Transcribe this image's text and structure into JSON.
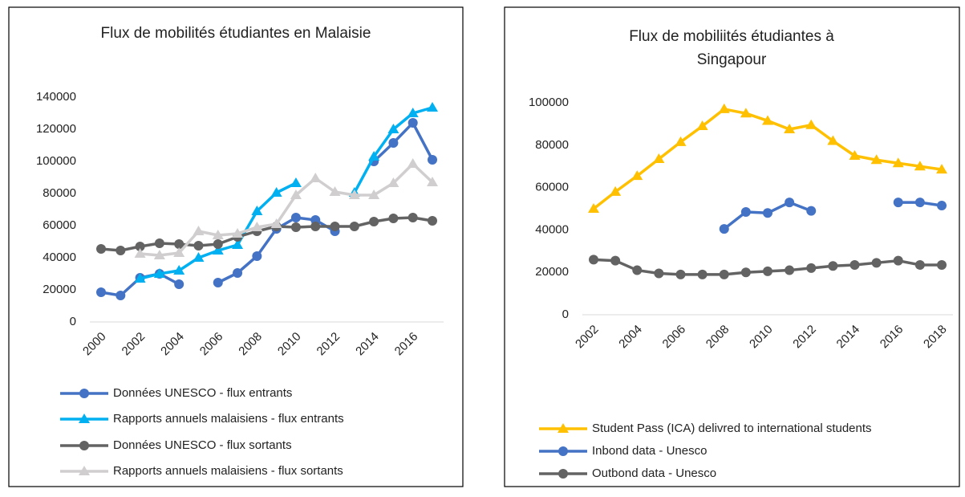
{
  "chart_data": [
    {
      "type": "line",
      "title": [
        "Flux de mobilités étudiantes en Malaisie"
      ],
      "x": [
        2000,
        2001,
        2002,
        2003,
        2004,
        2005,
        2006,
        2007,
        2008,
        2009,
        2010,
        2011,
        2012,
        2013,
        2014,
        2015,
        2016,
        2017
      ],
      "xlim": [
        2000,
        2017
      ],
      "xticks": [
        2000,
        2002,
        2004,
        2006,
        2008,
        2010,
        2012,
        2014,
        2016
      ],
      "ylim": [
        0,
        140000
      ],
      "yticks": [
        0,
        20000,
        40000,
        60000,
        80000,
        100000,
        120000,
        140000
      ],
      "series": [
        {
          "name": "Données UNESCO - flux entrants",
          "color": "#4472c4",
          "marker": "circle",
          "values": [
            18500,
            16500,
            27500,
            30000,
            23500,
            null,
            24500,
            30500,
            41000,
            58000,
            65000,
            63500,
            56500,
            null,
            100000,
            111500,
            124000,
            101000
          ]
        },
        {
          "name": "Rapports annuels malaisiens - flux entrants",
          "color": "#00b0f0",
          "marker": "triangle",
          "values": [
            null,
            null,
            27000,
            30000,
            32000,
            40000,
            44500,
            48000,
            69000,
            80500,
            86500,
            null,
            null,
            80500,
            103000,
            120000,
            130000,
            133500
          ]
        },
        {
          "name": "Données UNESCO - flux sortants",
          "color": "#636363",
          "marker": "circle",
          "values": [
            45500,
            44500,
            47000,
            49000,
            48500,
            47500,
            48500,
            53000,
            56500,
            59500,
            59000,
            59500,
            59500,
            59500,
            62500,
            64500,
            65000,
            63000
          ]
        },
        {
          "name": "Rapports annuels malaisiens - flux sortants",
          "color": "#d0cece",
          "marker": "triangle",
          "values": [
            null,
            null,
            42500,
            41500,
            43000,
            56500,
            54000,
            55000,
            59000,
            61000,
            79000,
            89500,
            81000,
            79000,
            79000,
            86500,
            98500,
            87000
          ]
        }
      ]
    },
    {
      "type": "line",
      "title": [
        "Flux de mobiliités étudiantes à",
        "Singapour"
      ],
      "x": [
        2002,
        2003,
        2004,
        2005,
        2006,
        2007,
        2008,
        2009,
        2010,
        2011,
        2012,
        2013,
        2014,
        2015,
        2016,
        2017,
        2018
      ],
      "xlim": [
        2002,
        2018
      ],
      "xticks": [
        2002,
        2004,
        2006,
        2008,
        2010,
        2012,
        2014,
        2016,
        2018
      ],
      "ylim": [
        0,
        100000
      ],
      "yticks": [
        0,
        20000,
        40000,
        60000,
        80000,
        100000
      ],
      "series": [
        {
          "name": "Student Pass (ICA) delivred to international students",
          "color": "#ffc000",
          "marker": "triangle",
          "values": [
            50000,
            58000,
            65500,
            73500,
            81500,
            89000,
            97000,
            95000,
            91500,
            87500,
            89500,
            82000,
            75000,
            73000,
            71500,
            70000,
            68500
          ]
        },
        {
          "name": "Inbond data - Unesco",
          "color": "#4472c4",
          "marker": "circle",
          "values": [
            null,
            null,
            null,
            null,
            null,
            null,
            40500,
            48500,
            48000,
            53000,
            49000,
            null,
            null,
            null,
            53000,
            53000,
            51500
          ]
        },
        {
          "name": "Outbond data - Unesco",
          "color": "#636363",
          "marker": "circle",
          "values": [
            26000,
            25500,
            21000,
            19500,
            19000,
            19000,
            19000,
            20000,
            20500,
            21000,
            22000,
            23000,
            23500,
            24500,
            25500,
            23500,
            23500
          ]
        }
      ]
    }
  ]
}
